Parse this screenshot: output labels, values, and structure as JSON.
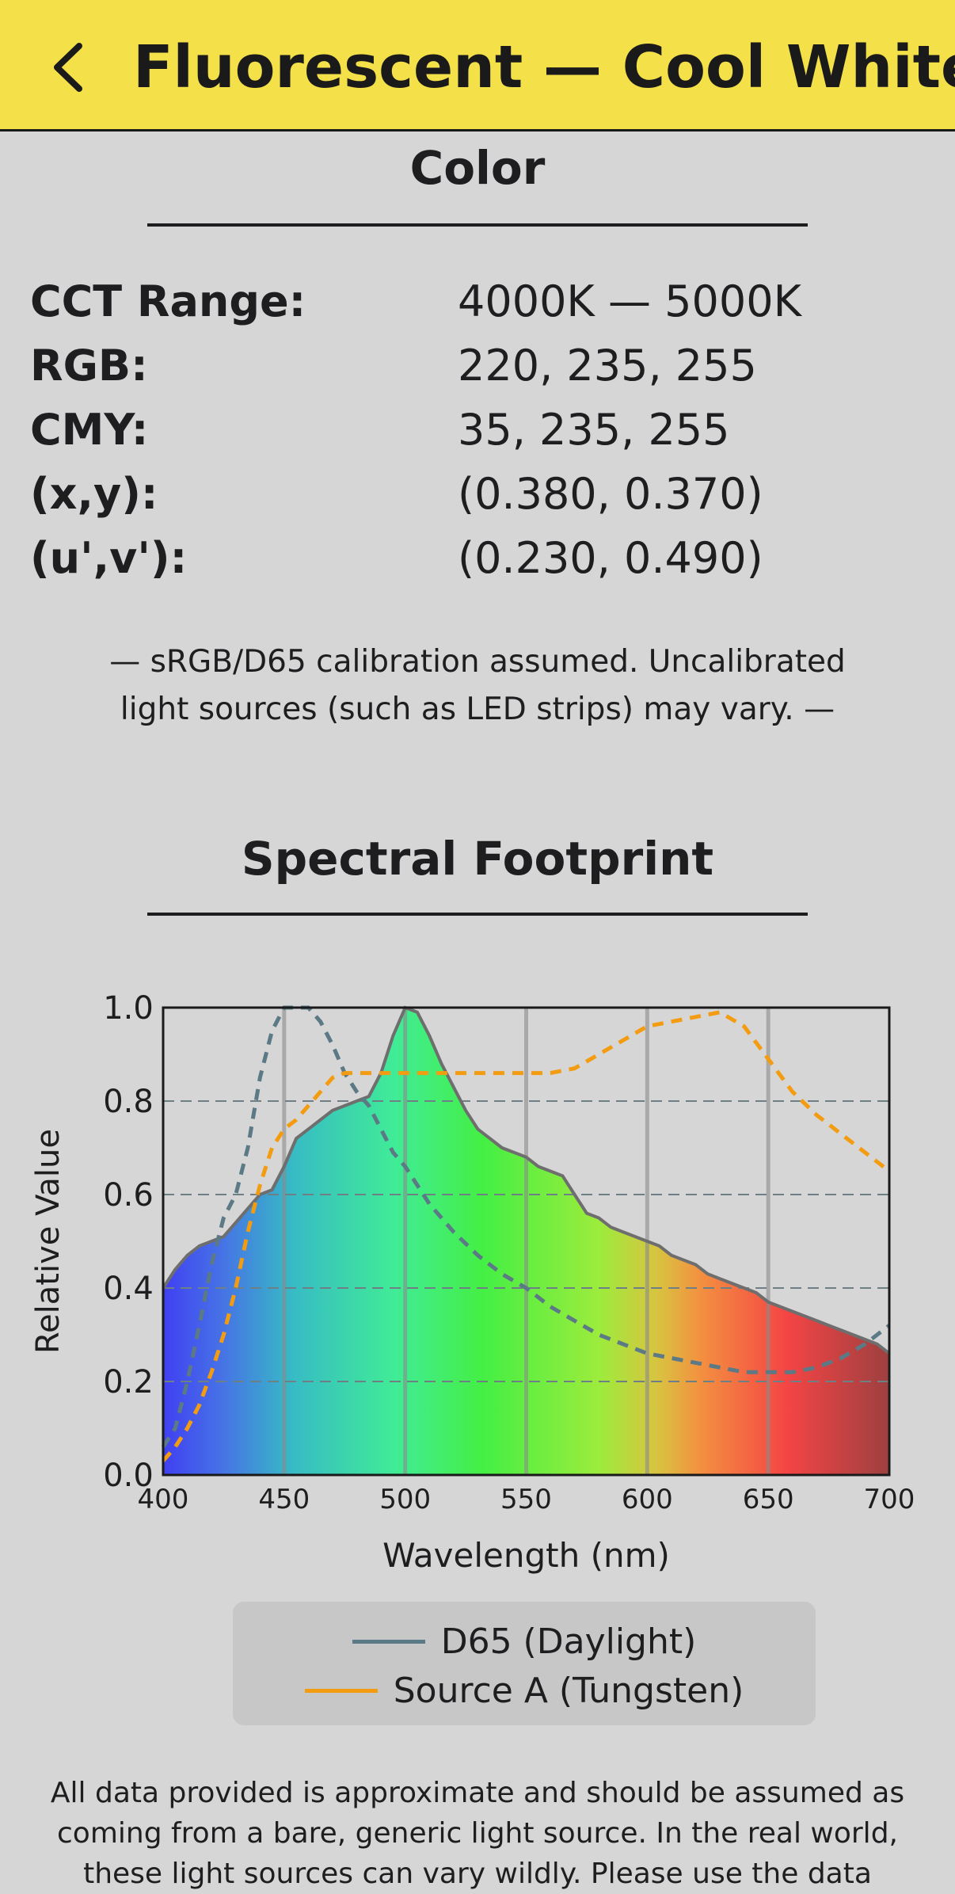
{
  "header": {
    "title": "Fluorescent — Cool White",
    "back_icon": "chevron-left-icon"
  },
  "color_section": {
    "title": "Color",
    "properties": [
      {
        "label": "CCT Range:",
        "value": "4000K — 5000K"
      },
      {
        "label": "RGB:",
        "value": "220, 235, 255"
      },
      {
        "label": "CMY:",
        "value": "35, 235, 255"
      },
      {
        "label": "(x,y):",
        "value": "(0.380, 0.370)"
      },
      {
        "label": "(u',v'):",
        "value": "(0.230, 0.490)"
      }
    ],
    "note_line1": "— sRGB/D65 calibration assumed. Uncalibrated",
    "note_line2": "light sources (such as LED strips) may vary. —"
  },
  "spectral_section": {
    "title": "Spectral Footprint"
  },
  "chart_data": {
    "type": "area",
    "xlabel": "Wavelength (nm)",
    "ylabel": "Relative Value",
    "xlim": [
      400,
      700
    ],
    "ylim": [
      0,
      1
    ],
    "x_ticks": [
      "400",
      "450",
      "500",
      "550",
      "600",
      "650",
      "700"
    ],
    "y_ticks": [
      "0.0",
      "0.2",
      "0.4",
      "0.6",
      "0.8",
      "1.0"
    ],
    "grid": "horizontal dashed at y ticks, vertical solid at x ticks",
    "legend_position": "bottom",
    "series": [
      {
        "style": "filled-spectrum-area",
        "color": "#6e6e6e",
        "x": [
          400,
          405,
          410,
          415,
          420,
          425,
          430,
          435,
          440,
          445,
          450,
          455,
          460,
          465,
          470,
          475,
          480,
          485,
          490,
          495,
          500,
          505,
          510,
          515,
          520,
          525,
          530,
          535,
          540,
          545,
          550,
          555,
          560,
          565,
          570,
          575,
          580,
          585,
          590,
          595,
          600,
          605,
          610,
          615,
          620,
          625,
          630,
          635,
          640,
          645,
          650,
          655,
          660,
          665,
          670,
          675,
          680,
          685,
          690,
          695,
          700
        ],
        "y": [
          0.4,
          0.44,
          0.47,
          0.49,
          0.5,
          0.51,
          0.54,
          0.57,
          0.6,
          0.61,
          0.66,
          0.72,
          0.74,
          0.76,
          0.78,
          0.79,
          0.8,
          0.81,
          0.86,
          0.94,
          1.0,
          0.99,
          0.94,
          0.88,
          0.83,
          0.78,
          0.74,
          0.72,
          0.7,
          0.69,
          0.68,
          0.66,
          0.65,
          0.64,
          0.6,
          0.56,
          0.55,
          0.53,
          0.52,
          0.51,
          0.5,
          0.49,
          0.47,
          0.46,
          0.45,
          0.43,
          0.42,
          0.41,
          0.4,
          0.39,
          0.37,
          0.36,
          0.35,
          0.34,
          0.33,
          0.32,
          0.31,
          0.3,
          0.29,
          0.28,
          0.26
        ]
      },
      {
        "name": "D65 (Daylight)",
        "style": "dashed",
        "color": "#5c7a86",
        "x": [
          400,
          405,
          410,
          415,
          420,
          425,
          430,
          435,
          440,
          445,
          450,
          455,
          460,
          465,
          470,
          475,
          480,
          485,
          490,
          495,
          500,
          510,
          520,
          530,
          540,
          550,
          560,
          570,
          580,
          590,
          600,
          610,
          620,
          630,
          640,
          650,
          660,
          670,
          680,
          690,
          700
        ],
        "y": [
          0.06,
          0.1,
          0.2,
          0.32,
          0.45,
          0.55,
          0.6,
          0.7,
          0.85,
          0.95,
          1.0,
          1.0,
          1.0,
          0.97,
          0.92,
          0.86,
          0.82,
          0.79,
          0.74,
          0.69,
          0.66,
          0.58,
          0.52,
          0.47,
          0.43,
          0.4,
          0.36,
          0.33,
          0.3,
          0.28,
          0.26,
          0.25,
          0.24,
          0.23,
          0.22,
          0.22,
          0.22,
          0.23,
          0.25,
          0.28,
          0.32
        ]
      },
      {
        "name": "Source A (Tungsten)",
        "style": "dashed",
        "color": "#f39c12",
        "x": [
          400,
          405,
          410,
          415,
          420,
          425,
          430,
          435,
          440,
          445,
          450,
          455,
          460,
          465,
          470,
          475,
          480,
          485,
          490,
          500,
          510,
          520,
          530,
          540,
          550,
          560,
          570,
          580,
          590,
          600,
          610,
          620,
          630,
          640,
          650,
          660,
          670,
          680,
          690,
          700
        ],
        "y": [
          0.03,
          0.06,
          0.1,
          0.15,
          0.22,
          0.3,
          0.4,
          0.52,
          0.62,
          0.7,
          0.74,
          0.76,
          0.79,
          0.82,
          0.85,
          0.86,
          0.86,
          0.86,
          0.86,
          0.86,
          0.86,
          0.86,
          0.86,
          0.86,
          0.86,
          0.86,
          0.87,
          0.9,
          0.93,
          0.96,
          0.97,
          0.98,
          0.99,
          0.96,
          0.89,
          0.82,
          0.77,
          0.73,
          0.69,
          0.65
        ]
      }
    ]
  },
  "legend": {
    "items": [
      {
        "label": "D65 (Daylight)",
        "color": "#5c7a86"
      },
      {
        "label": "Source A (Tungsten)",
        "color": "#f39c12"
      }
    ]
  },
  "disclaimer": {
    "line1": "All data provided is approximate and should be assumed as",
    "line2": "coming from a bare, generic light source. In the real world,",
    "line3": "these light sources can vary wildly. Please use the data"
  }
}
